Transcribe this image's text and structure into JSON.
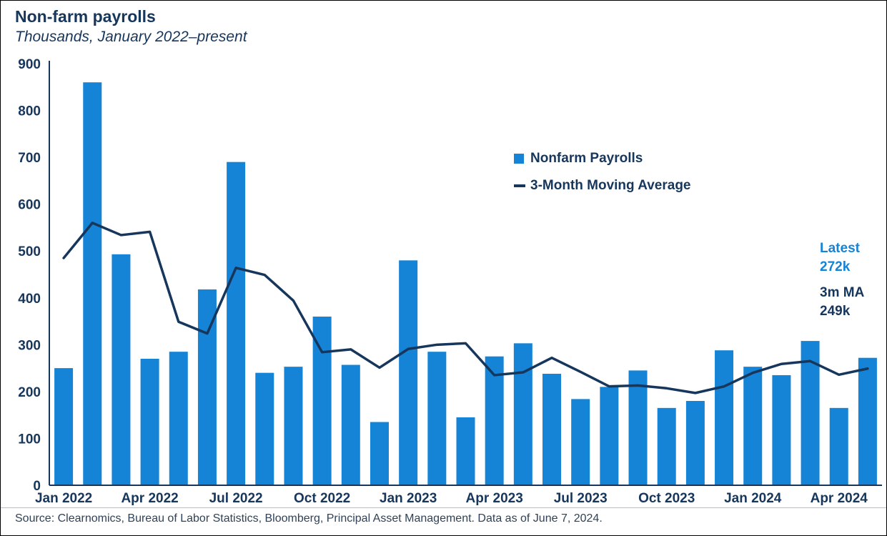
{
  "page": {
    "title": "Non-farm payrolls",
    "subtitle": "Thousands, January 2022–present",
    "source": "Source: Clearnomics, Bureau of Labor Statistics, Bloomberg, Principal Asset Management. Data as of June 7, 2024."
  },
  "legend": {
    "bars_label": "Nonfarm Payrolls",
    "line_label": "3-Month Moving Average"
  },
  "annotations": {
    "latest_label": "Latest",
    "latest_value": "272k",
    "ma_label": "3m MA",
    "ma_value": "249k"
  },
  "colors": {
    "bar": "#1583d6",
    "line": "#16365c",
    "axis": "#16365c"
  },
  "chart_data": {
    "type": "bar",
    "title": "Non-farm payrolls",
    "subtitle": "Thousands, January 2022–present",
    "ylabel": "Thousands",
    "ylim": [
      0,
      900
    ],
    "ytick_step": 100,
    "grid": false,
    "legend_position": "upper-center-right",
    "x": [
      "Jan 2022",
      "Feb 2022",
      "Mar 2022",
      "Apr 2022",
      "May 2022",
      "Jun 2022",
      "Jul 2022",
      "Aug 2022",
      "Sep 2022",
      "Oct 2022",
      "Nov 2022",
      "Dec 2022",
      "Jan 2023",
      "Feb 2023",
      "Mar 2023",
      "Apr 2023",
      "May 2023",
      "Jun 2023",
      "Jul 2023",
      "Aug 2023",
      "Sep 2023",
      "Oct 2023",
      "Nov 2023",
      "Dec 2023",
      "Jan 2024",
      "Feb 2024",
      "Mar 2024",
      "Apr 2024",
      "May 2024"
    ],
    "x_tick_indices": [
      0,
      3,
      6,
      9,
      12,
      15,
      18,
      21,
      24,
      27
    ],
    "series": [
      {
        "name": "Nonfarm Payrolls",
        "type": "bar",
        "values": [
          250,
          860,
          493,
          270,
          285,
          418,
          690,
          240,
          253,
          360,
          257,
          135,
          480,
          285,
          145,
          275,
          303,
          238,
          184,
          210,
          245,
          165,
          180,
          288,
          253,
          235,
          308,
          165,
          272
        ]
      },
      {
        "name": "3-Month Moving Average",
        "type": "line",
        "values": [
          485,
          560,
          534,
          541,
          349,
          324,
          464,
          449,
          394,
          284,
          290,
          251,
          291,
          300,
          303,
          235,
          241,
          272,
          242,
          211,
          213,
          207,
          197,
          211,
          240,
          259,
          265,
          236,
          249
        ]
      }
    ]
  }
}
